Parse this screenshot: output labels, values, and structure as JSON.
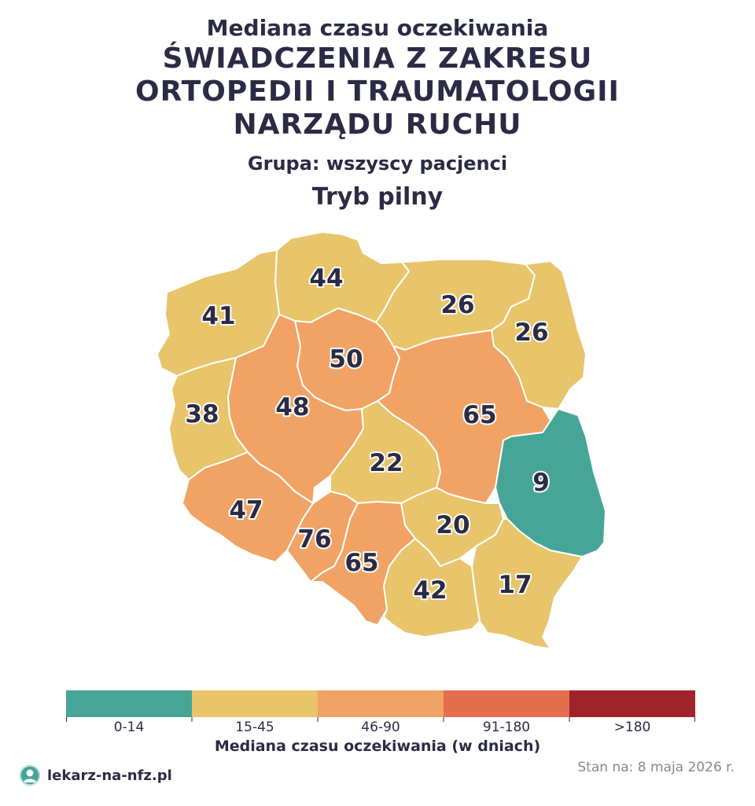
{
  "header": {
    "subtitle_top": "Mediana czasu oczekiwania",
    "title": "ŚWIADCZENIA Z ZAKRESU ORTOPEDII I TRAUMATOLOGII NARZĄDU RUCHU",
    "group": "Grupa: wszyscy pacjenci",
    "mode": "Tryb pilny"
  },
  "map": {
    "regions": [
      {
        "id": "pomorskie",
        "value": 44,
        "label": "44",
        "color": "#e8c46a"
      },
      {
        "id": "zachodniopomorskie",
        "value": 41,
        "label": "41",
        "color": "#e8c46a"
      },
      {
        "id": "warminsko-mazurskie",
        "value": 26,
        "label": "26",
        "color": "#e8c46a"
      },
      {
        "id": "podlaskie",
        "value": 26,
        "label": "26",
        "color": "#e8c46a"
      },
      {
        "id": "kujawsko-pomorskie",
        "value": 50,
        "label": "50",
        "color": "#f0a364"
      },
      {
        "id": "lubuskie",
        "value": 38,
        "label": "38",
        "color": "#e8c46a"
      },
      {
        "id": "wielkopolskie",
        "value": 48,
        "label": "48",
        "color": "#f0a364"
      },
      {
        "id": "mazowieckie",
        "value": 65,
        "label": "65",
        "color": "#f0a364"
      },
      {
        "id": "lodzkie",
        "value": 22,
        "label": "22",
        "color": "#e8c46a"
      },
      {
        "id": "lubelskie",
        "value": 9,
        "label": "9",
        "color": "#46a597"
      },
      {
        "id": "dolnoslaskie",
        "value": 47,
        "label": "47",
        "color": "#f0a364"
      },
      {
        "id": "opolskie",
        "value": 76,
        "label": "76",
        "color": "#f0a364"
      },
      {
        "id": "swietokrzyskie",
        "value": 20,
        "label": "20",
        "color": "#e8c46a"
      },
      {
        "id": "slaskie",
        "value": 65,
        "label": "65",
        "color": "#f0a364"
      },
      {
        "id": "malopolskie",
        "value": 42,
        "label": "42",
        "color": "#e8c46a"
      },
      {
        "id": "podkarpackie",
        "value": 17,
        "label": "17",
        "color": "#e8c46a"
      }
    ]
  },
  "legend": {
    "bins": [
      {
        "label": "0-14",
        "color": "#46a597"
      },
      {
        "label": "15-45",
        "color": "#e8c46a"
      },
      {
        "label": "46-90",
        "color": "#f0a364"
      },
      {
        "label": "91-180",
        "color": "#e36f50"
      },
      {
        "label": ">180",
        "color": "#a0232b"
      }
    ],
    "title": "Mediana czasu oczekiwania (w dniach)"
  },
  "footer": {
    "brand": "lekarz-na-nfz.pl",
    "brand_icon": "doctor-logo-icon",
    "date": "Stan na: 8 maja 2026 r."
  }
}
